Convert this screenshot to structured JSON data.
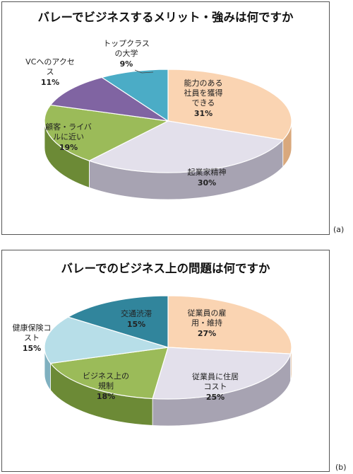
{
  "chart_data": [
    {
      "type": "pie",
      "title": "バレーでビジネスするメリット・強みは何ですか",
      "panel_label": "(a)",
      "slices": [
        {
          "label": [
            "能力のある",
            "社員を獲得",
            "できる"
          ],
          "value": 31,
          "pct_text": "31%",
          "color": "#FAD4B2",
          "side": "#D9A87C"
        },
        {
          "label": [
            "起業家精神"
          ],
          "value": 30,
          "pct_text": "30%",
          "color": "#E3E0EB",
          "side": "#A7A3B2"
        },
        {
          "label": [
            "顧客・ライバ",
            "ルに近い"
          ],
          "value": 19,
          "pct_text": "19%",
          "color": "#9BBB59",
          "side": "#6C8A36"
        },
        {
          "label": [
            "VCへのアクセ",
            "ス"
          ],
          "value": 11,
          "pct_text": "11%",
          "color": "#8064A2",
          "side": "#5A4476"
        },
        {
          "label": [
            "トップクラス",
            "の大学"
          ],
          "value": 9,
          "pct_text": "9%",
          "color": "#4BACC6",
          "side": "#2F7F96"
        }
      ]
    },
    {
      "type": "pie",
      "title": "バレーでのビジネス上の問題は何ですか",
      "panel_label": "(b)",
      "slices": [
        {
          "label": [
            "従業員の雇",
            "用・維持"
          ],
          "value": 27,
          "pct_text": "27%",
          "color": "#FAD4B2",
          "side": "#D9A87C"
        },
        {
          "label": [
            "従業員に住居",
            "コスト"
          ],
          "value": 25,
          "pct_text": "25%",
          "color": "#E3E0EB",
          "side": "#A7A3B2"
        },
        {
          "label": [
            "ビジネス上の",
            "規制"
          ],
          "value": 18,
          "pct_text": "18%",
          "color": "#9BBB59",
          "side": "#6C8A36"
        },
        {
          "label": [
            "健康保険コ",
            "スト"
          ],
          "value": 15,
          "pct_text": "15%",
          "color": "#B7DEE8",
          "side": "#7FB0BF"
        },
        {
          "label": [
            "交通渋滞"
          ],
          "value": 15,
          "pct_text": "15%",
          "color": "#31859C",
          "side": "#1F5C6C"
        }
      ]
    }
  ]
}
